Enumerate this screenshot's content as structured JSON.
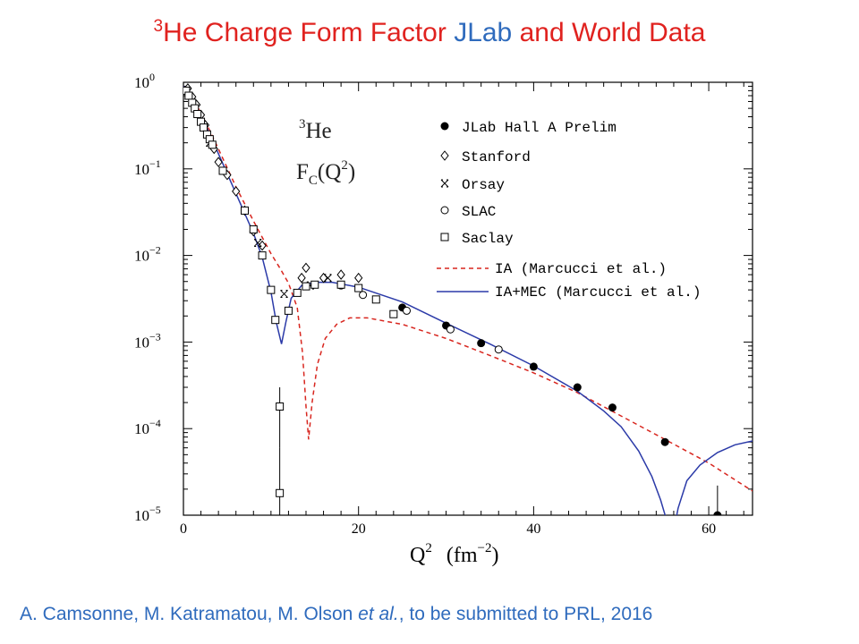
{
  "slide": {
    "title": {
      "sup": "3",
      "part1": "He Charge Form Factor ",
      "part2": "JLab",
      "part3": " and World Data",
      "color_main": "#e0221f",
      "color_accent": "#2f6bbd"
    },
    "citation": {
      "before": "A. Camsonne, M. Katramatou, M. Olson ",
      "italic": "et al.",
      "after": ", to be submitted to PRL, 2016"
    }
  },
  "chart_data": {
    "type": "scatter",
    "log_y": true,
    "xlim": [
      0,
      65
    ],
    "ylim": [
      1e-05,
      1
    ],
    "x_ticks": [
      0,
      20,
      40,
      60
    ],
    "y_ticks": [
      {
        "base": "10",
        "exp": "0",
        "value": 1
      },
      {
        "base": "10",
        "exp": "−1",
        "value": 0.1
      },
      {
        "base": "10",
        "exp": "−2",
        "value": 0.01
      },
      {
        "base": "10",
        "exp": "−3",
        "value": 0.001
      },
      {
        "base": "10",
        "exp": "−4",
        "value": 0.0001
      },
      {
        "base": "10",
        "exp": "−5",
        "value": 1e-05
      }
    ],
    "xlabel": {
      "main": "Q",
      "sup1": "2",
      "unit_open": "(fm",
      "unit_sup": "−2",
      "unit_close": ")"
    },
    "ylabel": "",
    "annotation": {
      "sup": "3",
      "line1": "He",
      "line2_main": "F",
      "line2_sub": "C",
      "line2_arg": "(Q",
      "line2_sup": "2",
      "line2_close": ")"
    },
    "legend_position": "top-right",
    "series": [
      {
        "name": "JLab Hall A Prelim",
        "marker": "filled-circle",
        "points": [
          [
            25,
            0.0025
          ],
          [
            30,
            0.00155
          ],
          [
            34,
            0.00097
          ],
          [
            40,
            0.00052
          ],
          [
            45,
            0.0003
          ],
          [
            49,
            0.000175
          ],
          [
            55,
            7e-05
          ],
          [
            61,
            1e-05
          ]
        ]
      },
      {
        "name": "Stanford",
        "marker": "diamond",
        "points": [
          [
            0.5,
            0.85
          ],
          [
            1.0,
            0.68
          ],
          [
            1.5,
            0.55
          ],
          [
            2.0,
            0.42
          ],
          [
            2.5,
            0.32
          ],
          [
            3.0,
            0.22
          ],
          [
            3.5,
            0.17
          ],
          [
            4.0,
            0.12
          ],
          [
            5.0,
            0.085
          ],
          [
            6.0,
            0.055
          ],
          [
            7.0,
            0.033
          ],
          [
            8.0,
            0.019
          ],
          [
            9.0,
            0.013
          ],
          [
            13.5,
            0.0055
          ],
          [
            14.0,
            0.0072
          ],
          [
            16.0,
            0.0055
          ],
          [
            18.0,
            0.006
          ],
          [
            20.0,
            0.0055
          ]
        ]
      },
      {
        "name": "Orsay",
        "marker": "star",
        "points": [
          [
            3.0,
            0.2
          ],
          [
            8.5,
            0.014
          ],
          [
            11.5,
            0.0036
          ],
          [
            14.5,
            0.0045
          ],
          [
            16.5,
            0.0055
          ]
        ]
      },
      {
        "name": "SLAC",
        "marker": "open-circle",
        "points": [
          [
            18.0,
            0.0045
          ],
          [
            20.5,
            0.0035
          ],
          [
            25.5,
            0.0023
          ],
          [
            30.5,
            0.0014
          ],
          [
            36.0,
            0.00082
          ]
        ]
      },
      {
        "name": "Saclay",
        "marker": "open-square",
        "points": [
          [
            0.3,
            0.8
          ],
          [
            0.6,
            0.7
          ],
          [
            1.0,
            0.58
          ],
          [
            1.3,
            0.5
          ],
          [
            1.6,
            0.43
          ],
          [
            2.0,
            0.35
          ],
          [
            2.3,
            0.3
          ],
          [
            2.7,
            0.25
          ],
          [
            3.0,
            0.22
          ],
          [
            3.3,
            0.19
          ],
          [
            4.5,
            0.095
          ],
          [
            7.0,
            0.033
          ],
          [
            8.0,
            0.02
          ],
          [
            9.0,
            0.01
          ],
          [
            10.0,
            0.004
          ],
          [
            10.5,
            0.0018
          ],
          [
            11.0,
            0.00018
          ],
          [
            11.0,
            1.8e-05
          ],
          [
            12.0,
            0.0023
          ],
          [
            13.0,
            0.0037
          ],
          [
            14.0,
            0.0044
          ],
          [
            15.0,
            0.0046
          ],
          [
            18.0,
            0.0046
          ],
          [
            20.0,
            0.0042
          ],
          [
            22.0,
            0.0031
          ],
          [
            24.0,
            0.0021
          ]
        ]
      }
    ],
    "error_bars": [
      {
        "x": 11.0,
        "y": 0.00018,
        "lo": 6e-05,
        "hi": 0.0003
      },
      {
        "x": 11.0,
        "y": 1.8e-05,
        "lo": 1e-05,
        "hi": 6e-05
      },
      {
        "x": 61.0,
        "y": 1e-05,
        "lo": 1e-05,
        "hi": 2.2e-05
      }
    ],
    "curves": [
      {
        "name": "IA (Marcucci et al.)",
        "color": "#d8261f",
        "dash": true,
        "points": [
          [
            0,
            0.9
          ],
          [
            2,
            0.45
          ],
          [
            4,
            0.17
          ],
          [
            6,
            0.062
          ],
          [
            8,
            0.025
          ],
          [
            10,
            0.0105
          ],
          [
            11,
            0.0072
          ],
          [
            12,
            0.0048
          ],
          [
            13,
            0.0025
          ],
          [
            13.6,
            0.00075
          ],
          [
            14,
            0.00018
          ],
          [
            14.3,
            7.5e-05
          ],
          [
            14.7,
            0.0002
          ],
          [
            15.3,
            0.00055
          ],
          [
            16.2,
            0.0011
          ],
          [
            17.5,
            0.0016
          ],
          [
            19,
            0.0019
          ],
          [
            21,
            0.0019
          ],
          [
            25,
            0.0016
          ],
          [
            30,
            0.0011
          ],
          [
            35,
            0.0007
          ],
          [
            40,
            0.00044
          ],
          [
            45,
            0.00026
          ],
          [
            50,
            0.00014
          ],
          [
            55,
            7.5e-05
          ],
          [
            60,
            4e-05
          ],
          [
            65,
            1.9e-05
          ]
        ]
      },
      {
        "name": "IA+MEC (Marcucci et al.)",
        "color": "#2b3aa8",
        "dash": false,
        "points": [
          [
            0,
            0.9
          ],
          [
            2,
            0.42
          ],
          [
            4,
            0.15
          ],
          [
            6,
            0.052
          ],
          [
            8,
            0.018
          ],
          [
            9,
            0.0095
          ],
          [
            10,
            0.0038
          ],
          [
            10.6,
            0.0017
          ],
          [
            11.2,
            0.00095
          ],
          [
            11.7,
            0.0017
          ],
          [
            12.3,
            0.0032
          ],
          [
            13.5,
            0.0045
          ],
          [
            15,
            0.0049
          ],
          [
            17,
            0.0049
          ],
          [
            20,
            0.0043
          ],
          [
            25,
            0.0029
          ],
          [
            30,
            0.00165
          ],
          [
            35,
            0.00095
          ],
          [
            40,
            0.00053
          ],
          [
            45,
            0.00027
          ],
          [
            48,
            0.00016
          ],
          [
            50,
            0.000105
          ],
          [
            52,
            5.5e-05
          ],
          [
            53.5,
            2.8e-05
          ],
          [
            54.5,
            1.5e-05
          ],
          [
            55.3,
            8e-06
          ],
          [
            56,
            6.5e-06
          ],
          [
            56.5,
            1.2e-05
          ],
          [
            57.5,
            2.5e-05
          ],
          [
            59,
            3.8e-05
          ],
          [
            61,
            5.3e-05
          ],
          [
            63,
            6.5e-05
          ],
          [
            65,
            7.2e-05
          ]
        ]
      }
    ]
  }
}
